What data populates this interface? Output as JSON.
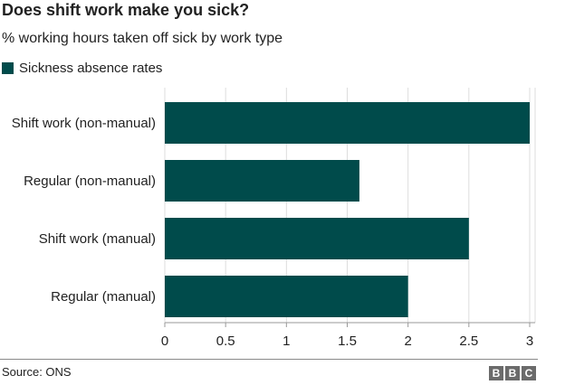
{
  "title": "Does shift work make you sick?",
  "subtitle": "% working hours taken off sick by work type",
  "legend": {
    "label": "Sickness absence rates"
  },
  "colors": {
    "bar": "#004b4b",
    "grid": "#dddddd",
    "axis": "#999999",
    "text": "#222222"
  },
  "chart_data": {
    "type": "bar",
    "orientation": "horizontal",
    "categories": [
      "Shift work (non-manual)",
      "Regular (non-manual)",
      "Shift work (manual)",
      "Regular (manual)"
    ],
    "series": [
      {
        "name": "Sickness absence rates",
        "values": [
          3.0,
          1.6,
          2.5,
          2.0
        ]
      }
    ],
    "xlim": [
      0,
      3
    ],
    "xticks": [
      "0",
      "0.5",
      "1",
      "1.5",
      "2",
      "2.5",
      "3"
    ],
    "grid": true,
    "legend_position": "top-left"
  },
  "footer": {
    "source": "Source: ONS",
    "logo_letters": [
      "B",
      "B",
      "C"
    ]
  }
}
